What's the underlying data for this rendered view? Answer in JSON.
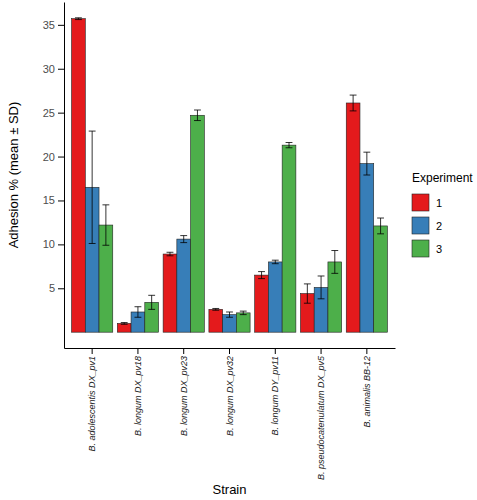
{
  "chart_data": {
    "type": "bar",
    "x_label": "Strain",
    "y_label": "Adhesion % (mean ± SD)",
    "categories": [
      "B. adolescentis DX_pv1",
      "B. longum DX_pv18",
      "B. longum DX_pv23",
      "B. longum DX_pv32",
      "B. longum DY_pv11",
      "B. pseudocatenulatum DX_pv5",
      "B. animalis BB-12"
    ],
    "legend_title": "Experiment",
    "legend": "right",
    "series": [
      {
        "name": "1",
        "color": "#e41a1c",
        "values": [
          35.7,
          1.0,
          8.9,
          2.6,
          6.5,
          4.4,
          26.1
        ],
        "errors": [
          0.1,
          0.1,
          0.2,
          0.1,
          0.4,
          1.1,
          0.9
        ]
      },
      {
        "name": "2",
        "color": "#377eb8",
        "values": [
          16.5,
          2.3,
          10.6,
          2.0,
          8.0,
          5.1,
          19.2
        ],
        "errors": [
          6.4,
          0.6,
          0.4,
          0.3,
          0.2,
          1.3,
          1.3
        ]
      },
      {
        "name": "3",
        "color": "#4daf4a",
        "values": [
          12.2,
          3.4,
          24.7,
          2.2,
          21.3,
          8.0,
          12.1
        ],
        "errors": [
          2.3,
          0.8,
          0.6,
          0.2,
          0.3,
          1.3,
          0.9
        ]
      }
    ],
    "ylim": [
      -1.8,
      37.6
    ],
    "yticks": [
      5,
      10,
      15,
      20,
      25,
      30,
      35
    ],
    "grid": false
  }
}
